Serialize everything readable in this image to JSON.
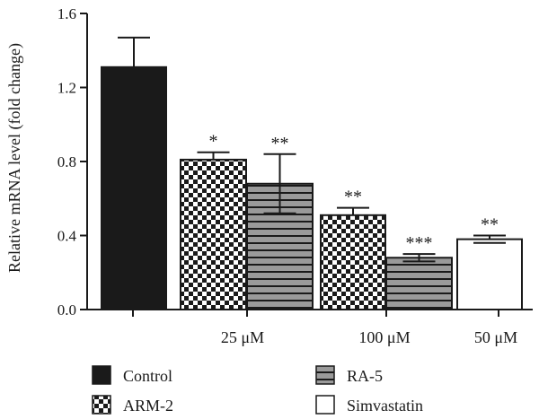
{
  "chart_data": {
    "type": "bar",
    "ylabel": "Relative mRNA level (fold change)",
    "ylim": [
      0,
      1.6
    ],
    "yticks": [
      "0.0",
      "0.4",
      "0.8",
      "1.2",
      "1.6"
    ],
    "groups": [
      "",
      "25 μM",
      "100 μM",
      "50 μM"
    ],
    "bars": [
      {
        "series": "Control",
        "group": 0,
        "value": 1.31,
        "error": 0.16,
        "sig": ""
      },
      {
        "series": "ARM-2",
        "group": 1,
        "value": 0.81,
        "error": 0.04,
        "sig": "*"
      },
      {
        "series": "RA-5",
        "group": 1,
        "value": 0.68,
        "error": 0.16,
        "sig": "**"
      },
      {
        "series": "ARM-2",
        "group": 2,
        "value": 0.51,
        "error": 0.04,
        "sig": "**"
      },
      {
        "series": "RA-5",
        "group": 2,
        "value": 0.28,
        "error": 0.02,
        "sig": "***"
      },
      {
        "series": "Simvastatin",
        "group": 3,
        "value": 0.38,
        "error": 0.02,
        "sig": "**"
      }
    ],
    "legend": [
      {
        "name": "Control",
        "pattern": "solid-black"
      },
      {
        "name": "RA-5",
        "pattern": "horizontal-stripes"
      },
      {
        "name": "ARM-2",
        "pattern": "checker"
      },
      {
        "name": "Simvastatin",
        "pattern": "white"
      }
    ],
    "colors": {
      "dark": "#1a1a1a",
      "stripe_fill": "#9a9a9a",
      "white": "#ffffff"
    }
  }
}
